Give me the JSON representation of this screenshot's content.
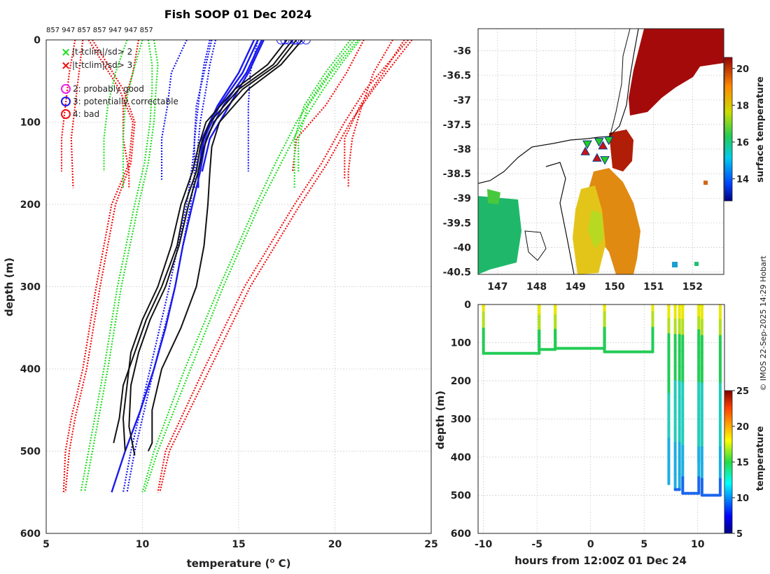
{
  "page_title": "Fish SOOP 01 Dec 2024",
  "credit": "© IMOS 22-Sep-2025 14:29 Hobart",
  "chart_data": [
    {
      "id": "profiles",
      "type": "line",
      "title": "Fish SOOP 01 Dec 2024",
      "serial_label": "857 947 857 857 947 947 857",
      "xlabel": "temperature (o C)",
      "xlabel_main": "temperature (",
      "xlabel_sup": "o",
      "xlabel_tail": " C)",
      "ylabel": "depth (m)",
      "xlim": [
        5,
        25
      ],
      "ylim": [
        600,
        0
      ],
      "xticks": [
        5,
        10,
        15,
        20,
        25
      ],
      "yticks": [
        0,
        100,
        200,
        300,
        400,
        500,
        600
      ],
      "grid": true,
      "legend_position": "top-left",
      "legend": [
        {
          "marker": "x",
          "color": "#22dd22",
          "label": "|t-tclim|/sd> 2"
        },
        {
          "marker": "x",
          "color": "#ee1111",
          "label": "|t-tclim|/sd> 3"
        },
        {
          "marker": "o",
          "color": "#ee22ee",
          "label": "2: probably good"
        },
        {
          "marker": "o",
          "color": "#1a1aee",
          "label": "3: potentially correctable"
        },
        {
          "marker": "o",
          "color": "#ee1111",
          "label": "4: bad"
        }
      ],
      "climatology_red": [
        {
          "name": "clim+3sd deep",
          "depth": [
            0,
            30,
            60,
            100,
            150,
            200,
            300,
            400,
            500,
            550
          ],
          "temp": [
            24.0,
            23.0,
            22.0,
            20.8,
            19.6,
            18.2,
            15.6,
            13.5,
            11.4,
            10.9
          ]
        },
        {
          "name": "clim+3sd deep 2",
          "depth": [
            0,
            30,
            60,
            100,
            150,
            200,
            300,
            400,
            500,
            550
          ],
          "temp": [
            23.8,
            22.7,
            21.6,
            20.5,
            19.3,
            17.9,
            15.3,
            13.2,
            11.2,
            10.8
          ]
        },
        {
          "name": "clim-3sd deep",
          "depth": [
            0,
            30,
            60,
            100,
            150,
            200,
            300,
            400,
            460,
            500,
            550
          ],
          "temp": [
            7.2,
            8.0,
            8.8,
            9.5,
            9.3,
            8.4,
            7.6,
            6.9,
            6.3,
            6.0,
            5.9
          ]
        },
        {
          "name": "clim-3sd deep 2",
          "depth": [
            0,
            30,
            60,
            100,
            150,
            200,
            300,
            400,
            460,
            500,
            550
          ],
          "temp": [
            7.4,
            8.2,
            9.0,
            9.6,
            9.4,
            8.6,
            7.8,
            7.1,
            6.5,
            6.2,
            6.0
          ]
        },
        {
          "name": "clim-3sd short",
          "depth": [
            0,
            40,
            80,
            120,
            160
          ],
          "temp": [
            6.5,
            6.2,
            6.0,
            5.8,
            5.8
          ]
        },
        {
          "name": "clim-3sd short 2",
          "depth": [
            0,
            40,
            80,
            120,
            180
          ],
          "temp": [
            6.9,
            6.7,
            6.5,
            6.3,
            6.4
          ]
        },
        {
          "name": "clim-3sd mid",
          "depth": [
            0,
            40,
            80,
            120,
            160,
            180
          ],
          "temp": [
            9.8,
            9.5,
            9.0,
            9.0,
            9.3,
            9.3
          ]
        },
        {
          "name": "clim+3sd short",
          "depth": [
            0,
            40,
            80,
            120,
            160,
            180
          ],
          "temp": [
            23.0,
            22.0,
            21.4,
            20.9,
            20.7,
            20.7
          ]
        },
        {
          "name": "clim+3sd short 2",
          "depth": [
            0,
            40,
            80,
            120,
            170
          ],
          "temp": [
            23.6,
            22.5,
            21.3,
            20.5,
            20.5
          ]
        },
        {
          "name": "clim+3sd mid",
          "depth": [
            0,
            40,
            80,
            120,
            160
          ],
          "temp": [
            21.5,
            20.6,
            19.5,
            18.0,
            17.8
          ]
        }
      ],
      "climatology_green": [
        {
          "name": "clim+2sd deep",
          "depth": [
            0,
            30,
            60,
            100,
            150,
            200,
            300,
            400,
            500,
            550
          ],
          "temp": [
            21.3,
            20.3,
            19.4,
            18.3,
            17.2,
            16.1,
            14.2,
            12.5,
            10.8,
            10.1
          ]
        },
        {
          "name": "clim+2sd deep 2",
          "depth": [
            0,
            30,
            60,
            100,
            150,
            200,
            300,
            400,
            500,
            550
          ],
          "temp": [
            21.0,
            20.0,
            19.1,
            18.0,
            16.9,
            15.9,
            14.0,
            12.2,
            10.6,
            10.0
          ]
        },
        {
          "name": "clim-2sd deep",
          "depth": [
            0,
            30,
            60,
            100,
            150,
            200,
            300,
            400,
            500,
            550
          ],
          "temp": [
            10.3,
            10.5,
            10.5,
            10.4,
            10.1,
            9.6,
            8.7,
            8.0,
            7.2,
            6.8
          ]
        },
        {
          "name": "clim-2sd deep 2",
          "depth": [
            0,
            30,
            60,
            100,
            150,
            200,
            300,
            400,
            500,
            550
          ],
          "temp": [
            10.6,
            10.8,
            10.7,
            10.6,
            10.3,
            9.8,
            8.9,
            8.2,
            7.4,
            7.0
          ]
        },
        {
          "name": "clim-2sd short",
          "depth": [
            0,
            40,
            80,
            120,
            160
          ],
          "temp": [
            9.2,
            8.6,
            8.2,
            8.0,
            8.0
          ]
        },
        {
          "name": "clim-2sd short 2",
          "depth": [
            0,
            40,
            80,
            120,
            180
          ],
          "temp": [
            10.0,
            9.5,
            9.1,
            9.0,
            9.0
          ]
        },
        {
          "name": "clim+2sd short",
          "depth": [
            0,
            40,
            80,
            120,
            180
          ],
          "temp": [
            20.8,
            19.5,
            18.4,
            17.9,
            17.9
          ]
        },
        {
          "name": "clim+2sd short 2",
          "depth": [
            0,
            40,
            80,
            120,
            160
          ],
          "temp": [
            21.2,
            19.8,
            18.6,
            18.1,
            18.1
          ]
        }
      ],
      "climatology_blue": [
        {
          "name": "clim mean deep",
          "depth": [
            0,
            30,
            60,
            100,
            150,
            200,
            300,
            400,
            500,
            550
          ],
          "temp": [
            13.8,
            13.5,
            13.3,
            13.0,
            12.8,
            12.5,
            11.7,
            10.6,
            9.6,
            9.2
          ]
        },
        {
          "name": "clim mean deep 2",
          "depth": [
            0,
            30,
            60,
            100,
            150,
            200,
            300,
            400,
            500,
            550
          ],
          "temp": [
            13.5,
            13.2,
            13.0,
            12.8,
            12.6,
            12.3,
            11.4,
            10.4,
            9.4,
            9.0
          ]
        },
        {
          "name": "clim mean short",
          "depth": [
            0,
            40,
            80,
            120,
            170
          ],
          "temp": [
            12.3,
            11.5,
            11.3,
            11.0,
            11.0
          ]
        },
        {
          "name": "clim mean short 2",
          "depth": [
            0,
            40,
            80,
            120,
            160
          ],
          "temp": [
            16.0,
            15.6,
            15.5,
            15.5,
            15.5
          ]
        },
        {
          "name": "clim mean short 3",
          "depth": [
            0,
            40,
            80,
            120,
            180
          ],
          "temp": [
            13.6,
            13.2,
            12.8,
            12.7,
            12.7
          ]
        }
      ],
      "profiles_blue_solid": [
        {
          "name": "blue profile 1",
          "depth": [
            0,
            40,
            80,
            120,
            160,
            200,
            250,
            300,
            350,
            400,
            450,
            500,
            550
          ],
          "temp": [
            16.2,
            15.4,
            14.2,
            13.3,
            13.0,
            12.6,
            12.1,
            11.7,
            11.2,
            10.6,
            9.9,
            9.1,
            8.4
          ]
        },
        {
          "name": "blue profile 2",
          "depth": [
            0,
            40,
            80,
            120,
            160,
            180
          ],
          "temp": [
            16.0,
            15.2,
            14.0,
            13.2,
            12.9,
            12.9
          ]
        },
        {
          "name": "blue profile 3",
          "depth": [
            0,
            40,
            80,
            120,
            160
          ],
          "temp": [
            16.3,
            15.5,
            14.5,
            13.5,
            13.1
          ]
        },
        {
          "name": "blue profile 4",
          "depth": [
            0,
            40,
            80,
            120,
            150
          ],
          "temp": [
            15.8,
            15.0,
            13.9,
            13.1,
            13.0
          ]
        }
      ],
      "profiles_black": [
        {
          "name": "black profile 1",
          "depth": [
            0,
            30,
            60,
            100,
            130,
            160,
            200,
            250,
            300,
            340,
            380,
            420,
            460,
            490
          ],
          "temp": [
            17.8,
            16.8,
            15.0,
            13.5,
            13.0,
            12.8,
            12.2,
            11.8,
            11.0,
            10.2,
            9.6,
            9.0,
            8.8,
            8.5
          ]
        },
        {
          "name": "black profile 2",
          "depth": [
            0,
            30,
            60,
            100,
            130,
            160,
            200,
            250,
            300,
            340,
            380,
            420,
            470,
            505
          ],
          "temp": [
            18.0,
            17.0,
            15.2,
            13.7,
            13.2,
            12.9,
            12.4,
            11.9,
            11.2,
            10.4,
            9.8,
            9.4,
            9.3,
            9.6
          ]
        },
        {
          "name": "black profile 3",
          "depth": [
            0,
            30,
            60,
            100,
            130,
            160,
            200,
            250,
            300,
            340,
            380,
            420,
            460,
            500
          ],
          "temp": [
            17.5,
            16.5,
            14.8,
            13.3,
            12.9,
            12.6,
            12.0,
            11.5,
            10.8,
            10.0,
            9.4,
            9.2,
            9.0,
            9.1
          ]
        },
        {
          "name": "black profile 4",
          "depth": [
            0,
            30,
            60,
            100,
            130,
            160,
            200,
            250,
            300,
            350,
            400,
            450,
            490,
            500
          ],
          "temp": [
            18.3,
            17.2,
            15.5,
            14.0,
            13.6,
            13.5,
            13.4,
            13.2,
            12.8,
            12.0,
            11.0,
            10.5,
            10.5,
            10.3
          ]
        }
      ],
      "flag_circles": {
        "color": "#1a1aee",
        "depth": [
          0,
          0,
          0,
          0,
          0,
          0,
          0
        ],
        "temp": [
          17.2,
          17.4,
          17.6,
          17.9,
          18.0,
          18.2,
          18.5
        ]
      }
    },
    {
      "id": "map",
      "type": "heatmap",
      "xlim": [
        146.5,
        152.8
      ],
      "ylim": [
        -40.55,
        -35.55
      ],
      "xticks": [
        147,
        148,
        149,
        150,
        151,
        152
      ],
      "yticks": [
        -36,
        -36.5,
        -37,
        -37.5,
        -38,
        -38.5,
        -39,
        -39.5,
        -40,
        -40.5
      ],
      "colorbar_label": "surface temperature",
      "colorbar_range": [
        12.8,
        20.6
      ],
      "colorbar_ticks": [
        14,
        16,
        18,
        20
      ],
      "drop_markers": [
        {
          "lon": 149.3,
          "lat": -37.9,
          "marker": "triangle-down",
          "color": "#22cc22"
        },
        {
          "lon": 149.6,
          "lat": -37.85,
          "marker": "triangle-down",
          "color": "#22cc22"
        },
        {
          "lon": 149.85,
          "lat": -37.82,
          "marker": "triangle-down",
          "color": "#22cc22"
        },
        {
          "lon": 149.75,
          "lat": -38.22,
          "marker": "triangle-down",
          "color": "#22cc22"
        },
        {
          "lon": 149.25,
          "lat": -38.05,
          "marker": "triangle",
          "color": "#cc1111"
        },
        {
          "lon": 149.55,
          "lat": -38.18,
          "marker": "triangle",
          "color": "#cc1111"
        },
        {
          "lon": 149.7,
          "lat": -37.93,
          "marker": "triangle",
          "color": "#cc1111"
        }
      ]
    },
    {
      "id": "timeline",
      "type": "scatter",
      "xlabel": "hours from 12:00Z 01 Dec 24",
      "ylabel": "depth (m)",
      "xlim": [
        -10.5,
        12.5
      ],
      "ylim": [
        600,
        0
      ],
      "xticks": [
        -10,
        -5,
        0,
        5,
        10
      ],
      "yticks": [
        0,
        100,
        200,
        300,
        400,
        500,
        600
      ],
      "colorbar_label": "temperature",
      "colorbar_range": [
        5,
        25
      ],
      "colorbar_ticks": [
        5,
        10,
        15,
        20,
        25
      ],
      "drops": [
        {
          "t0": -10.0,
          "t1": -4.8,
          "bottom": 128
        },
        {
          "t0": -4.8,
          "t1": -3.3,
          "bottom": 118
        },
        {
          "t0": -3.3,
          "t1": 1.3,
          "bottom": 115
        },
        {
          "t0": 1.3,
          "t1": 5.8,
          "bottom": 124
        },
        {
          "t0": 7.3,
          "t1": 7.3,
          "bottom": 470
        },
        {
          "t0": 7.9,
          "t1": 8.3,
          "bottom": 485
        },
        {
          "t0": 8.6,
          "t1": 10.1,
          "bottom": 495
        },
        {
          "t0": 10.1,
          "t1": 10.1,
          "bottom": 410
        },
        {
          "t0": 10.4,
          "t1": 12.1,
          "bottom": 500
        }
      ]
    }
  ]
}
